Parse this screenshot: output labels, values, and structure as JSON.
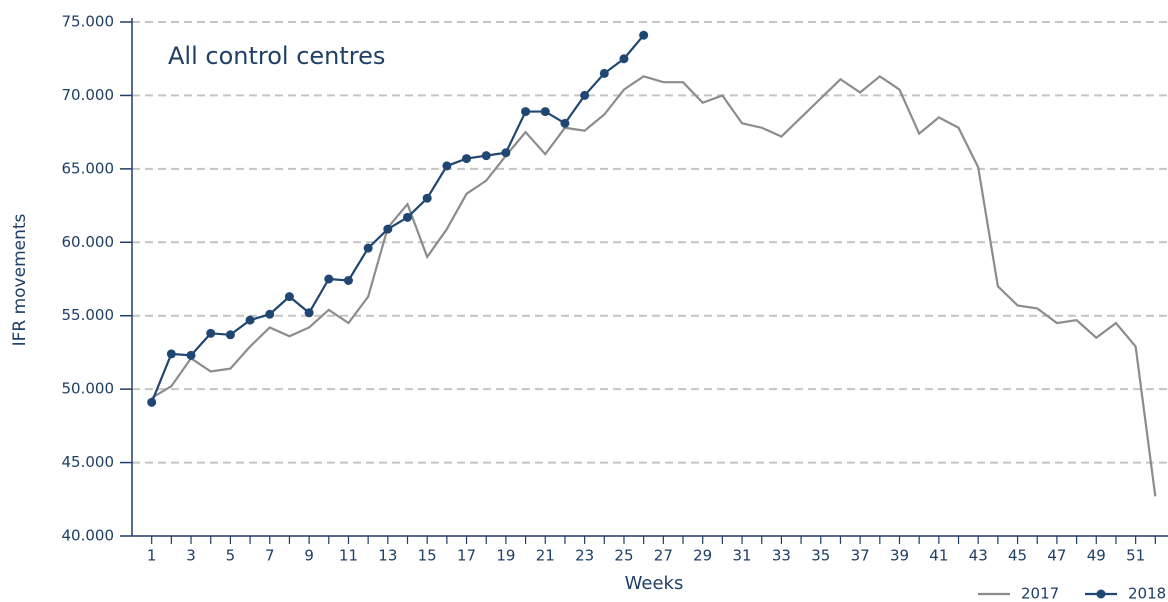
{
  "chart_data": {
    "type": "line",
    "title": "All control centres",
    "xlabel": "Weeks",
    "ylabel": "IFR movements",
    "x": [
      1,
      2,
      3,
      4,
      5,
      6,
      7,
      8,
      9,
      10,
      11,
      12,
      13,
      14,
      15,
      16,
      17,
      18,
      19,
      20,
      21,
      22,
      23,
      24,
      25,
      26,
      27,
      28,
      29,
      30,
      31,
      32,
      33,
      34,
      35,
      36,
      37,
      38,
      39,
      40,
      41,
      42,
      43,
      44,
      45,
      46,
      47,
      48,
      49,
      50,
      51,
      52
    ],
    "series": [
      {
        "name": "2017",
        "color": "#8c8c8c",
        "marker": false,
        "values": [
          49400,
          50200,
          52100,
          51200,
          51400,
          52900,
          54200,
          53600,
          54200,
          55400,
          54500,
          56300,
          61000,
          62600,
          59000,
          60900,
          63300,
          64200,
          65900,
          67500,
          66000,
          67800,
          67600,
          68700,
          70400,
          71300,
          70900,
          70900,
          69500,
          70000,
          68100,
          67800,
          67200,
          68500,
          69800,
          71100,
          70200,
          71300,
          70400,
          67400,
          68500,
          67800,
          65100,
          57000,
          55700,
          55500,
          54500,
          54700,
          53500,
          54500,
          52900,
          42700
        ]
      },
      {
        "name": "2018",
        "color": "#1f4772",
        "marker": true,
        "values": [
          49100,
          52400,
          52300,
          53800,
          53700,
          54700,
          55100,
          56300,
          55200,
          57500,
          57400,
          59600,
          60900,
          61700,
          63000,
          65200,
          65700,
          65900,
          66100,
          68900,
          68900,
          68100,
          70000,
          71500,
          72500,
          74100,
          null,
          null,
          null,
          null,
          null,
          null,
          null,
          null,
          null,
          null,
          null,
          null,
          null,
          null,
          null,
          null,
          null,
          null,
          null,
          null,
          null,
          null,
          null,
          null,
          null,
          null
        ]
      }
    ],
    "xlim": [
      0,
      53
    ],
    "xticks": [
      1,
      3,
      5,
      7,
      9,
      11,
      13,
      15,
      17,
      19,
      21,
      23,
      25,
      27,
      29,
      31,
      33,
      35,
      37,
      39,
      41,
      43,
      45,
      47,
      49,
      51
    ],
    "ylim": [
      40000,
      75000
    ],
    "yticks": [
      {
        "value": 40000,
        "label": "40.000"
      },
      {
        "value": 45000,
        "label": "45.000"
      },
      {
        "value": 50000,
        "label": "50.000"
      },
      {
        "value": 55000,
        "label": "55.000"
      },
      {
        "value": 60000,
        "label": "60.000"
      },
      {
        "value": 65000,
        "label": "65.000"
      },
      {
        "value": 70000,
        "label": "70.000"
      },
      {
        "value": 75000,
        "label": "75.000"
      }
    ],
    "grid": true,
    "legend": "bottom-right"
  }
}
